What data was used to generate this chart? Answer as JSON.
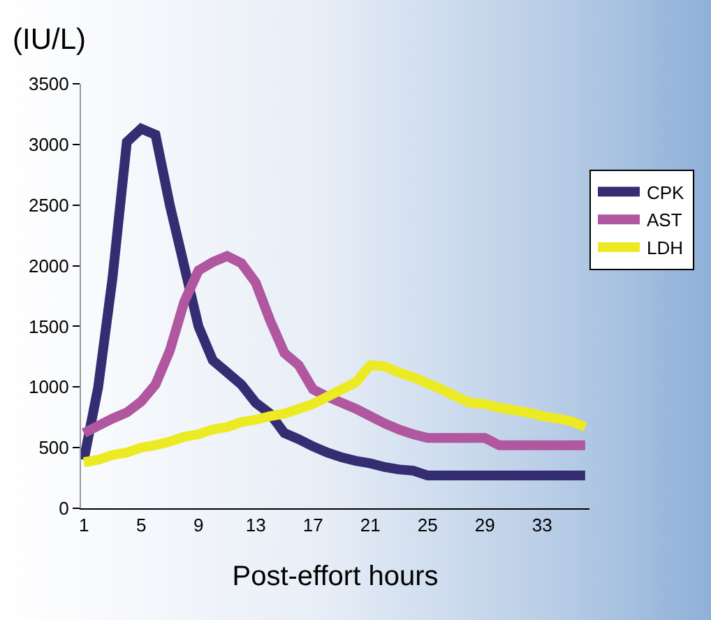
{
  "chart_data": {
    "type": "line",
    "ylabel": "(IU/L)",
    "xlabel": "Post-effort hours",
    "x": [
      1,
      2,
      3,
      4,
      5,
      6,
      7,
      8,
      9,
      10,
      11,
      12,
      13,
      14,
      15,
      16,
      17,
      18,
      19,
      20,
      21,
      22,
      23,
      24,
      25,
      26,
      27,
      28,
      29,
      30,
      31,
      32,
      33,
      34,
      35,
      36
    ],
    "xlim": [
      0.8,
      36.3
    ],
    "xticks": [
      1,
      5,
      9,
      13,
      17,
      21,
      25,
      29,
      33
    ],
    "ylim": [
      0,
      3500
    ],
    "yticks": [
      0,
      500,
      1000,
      1500,
      2000,
      2500,
      3000,
      3500
    ],
    "series": [
      {
        "name": "CPK",
        "color": "#352d72",
        "values": [
          400,
          1000,
          1900,
          3020,
          3130,
          3080,
          2500,
          2000,
          1500,
          1220,
          1120,
          1020,
          870,
          780,
          620,
          570,
          510,
          460,
          420,
          390,
          370,
          340,
          320,
          310,
          270,
          270,
          270,
          270,
          270,
          270,
          270,
          270,
          270,
          270,
          270,
          270
        ]
      },
      {
        "name": "AST",
        "color": "#b0579f",
        "values": [
          620,
          680,
          740,
          790,
          880,
          1020,
          1300,
          1700,
          1960,
          2030,
          2080,
          2020,
          1860,
          1550,
          1280,
          1180,
          980,
          920,
          870,
          820,
          760,
          700,
          650,
          610,
          580,
          580,
          580,
          580,
          580,
          520,
          520,
          520,
          520,
          520,
          520,
          520
        ]
      },
      {
        "name": "LDH",
        "color": "#ecea23",
        "values": [
          380,
          400,
          440,
          460,
          500,
          520,
          550,
          590,
          610,
          650,
          670,
          710,
          730,
          760,
          780,
          820,
          860,
          920,
          980,
          1040,
          1180,
          1170,
          1120,
          1080,
          1030,
          980,
          920,
          870,
          860,
          830,
          810,
          790,
          760,
          740,
          720,
          670
        ]
      }
    ],
    "grid": false,
    "legend": "right",
    "marker": "none",
    "line_style": "solid"
  }
}
